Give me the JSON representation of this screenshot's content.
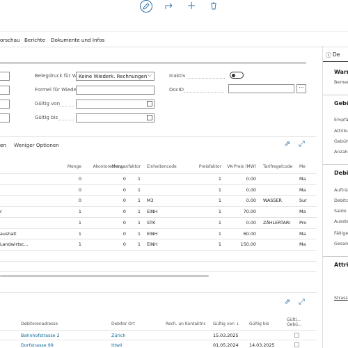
{
  "menu": [
    "orschau",
    "Berichte",
    "Dokumente und Infos"
  ],
  "form": {
    "fields": [
      {
        "label": "Belegdruck für Wiede...",
        "value": "Keine Wiederk. Rechnungen"
      },
      {
        "label": "Formel für Wiederk. R..."
      },
      {
        "label": "Gültig von"
      },
      {
        "label": "Gültig bis"
      }
    ],
    "inactive": "Inaktiv",
    "docid": "DocID"
  },
  "lines": {
    "tab": "en",
    "toggle": "Weniger Optionen",
    "columns": [
      null,
      "Menge",
      "Akontorechnu...",
      "Mengenfaktor",
      "Einheitencode",
      "Preisfaktor",
      "VK-Preis (MW)",
      "Tarifregelcode",
      "Me"
    ],
    "rows": [
      [
        null,
        "0",
        "0",
        "1",
        null,
        "1",
        "0.00",
        null,
        "Ma"
      ],
      [
        null,
        "0",
        "0",
        "1",
        null,
        "1",
        "0.00",
        null,
        "Ma"
      ],
      [
        null,
        "0",
        "0",
        "1",
        "M3",
        "1",
        "0.00",
        "WASSER",
        "Sur"
      ],
      [
        "r",
        "1",
        "0",
        "1",
        "EINH",
        "1",
        "70.00",
        null,
        "Ma"
      ],
      [
        null,
        "1",
        "0",
        "1",
        "STK",
        "1",
        "0.00",
        "ZÄHLERTARI",
        "Pro"
      ],
      [
        "aushalt",
        "1",
        "0",
        "1",
        "EINH",
        "1",
        "60.00",
        null,
        "Ma"
      ],
      [
        "Landwirtsc...",
        "1",
        "0",
        "1",
        "EINH",
        "1",
        "150.00",
        null,
        "Ma"
      ]
    ]
  },
  "addresses": {
    "columns": [
      "Debitorenadresse",
      "Debitor Ort",
      "Rech. an Kontaktnr.",
      "Gültig von ↓",
      "Gültig bis",
      "Gülti...\nGebü..."
    ],
    "rows": [
      [
        "Bahnhofstrasse 2",
        "Zürich",
        null,
        "15.03.2025",
        null
      ],
      [
        "Dorfstrasse 99",
        "Ittwil",
        null,
        "01.05.2024",
        "14.03.2025"
      ]
    ]
  },
  "panel": {
    "tab": "De",
    "sections": [
      {
        "title": "Warr",
        "fields": [
          "Bemer"
        ]
      },
      {
        "title": "Gebü",
        "fields": [
          "Empfä",
          "Attribu",
          "Gebüh",
          "Anzahl"
        ]
      },
      {
        "title": "Debit",
        "fields": [
          "Aufträ",
          "Debito",
          "Saldo (",
          "Ausste",
          "Fällige",
          "Gesam"
        ]
      },
      {
        "title": "Attril",
        "fields": [
          "Strass"
        ]
      }
    ]
  }
}
